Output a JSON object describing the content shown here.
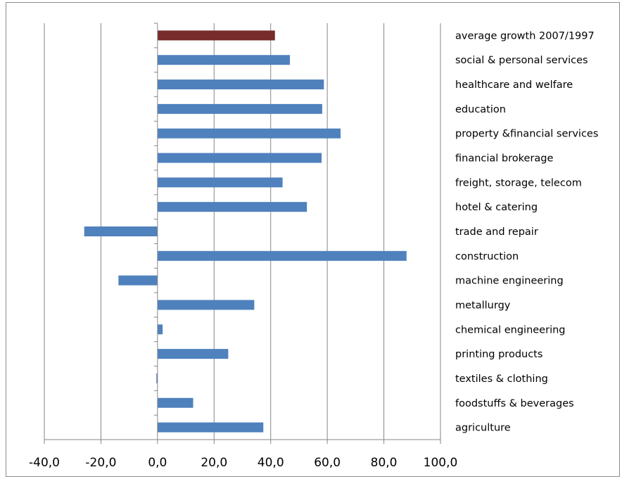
{
  "chart_data": {
    "type": "bar",
    "orientation": "horizontal",
    "title": "",
    "xlabel": "",
    "ylabel": "",
    "xlim": [
      -40,
      100
    ],
    "x_ticks": [
      -40,
      -20,
      0,
      20,
      40,
      60,
      80,
      100
    ],
    "x_tick_labels": [
      "-40,0",
      "-20,0",
      "0,0",
      "20,0",
      "40,0",
      "60,0",
      "80,0",
      "100,0"
    ],
    "grid": "vertical major gridlines",
    "legend": "none",
    "categories": [
      "average growth 2007/1997",
      "social & personal services",
      "healthcare and welfare",
      "education",
      "property &financial services",
      "financial brokerage",
      "freight, storage, telecom",
      "hotel & catering",
      "trade and repair",
      "construction",
      "machine engineering",
      "metallurgy",
      "chemical engineering",
      "printing products",
      "textiles & clothing",
      "foodstuffs & beverages",
      "agriculture"
    ],
    "values": [
      41.5,
      46.8,
      58.8,
      58.2,
      64.7,
      58,
      44.2,
      52.8,
      -25.9,
      88,
      -13.8,
      34.2,
      1.8,
      25,
      -0.4,
      12.6,
      37.4
    ],
    "bar_colors": [
      "#772b2b",
      "#4f81bd",
      "#4f81bd",
      "#4f81bd",
      "#4f81bd",
      "#4f81bd",
      "#4f81bd",
      "#4f81bd",
      "#4f81bd",
      "#4f81bd",
      "#4f81bd",
      "#4f81bd",
      "#4f81bd",
      "#4f81bd",
      "#4f81bd",
      "#4f81bd",
      "#4f81bd"
    ]
  },
  "colors": {
    "highlight_bar": "#772b2b",
    "bar": "#4f81bd",
    "gridline": "#868686",
    "axis": "#868686"
  }
}
